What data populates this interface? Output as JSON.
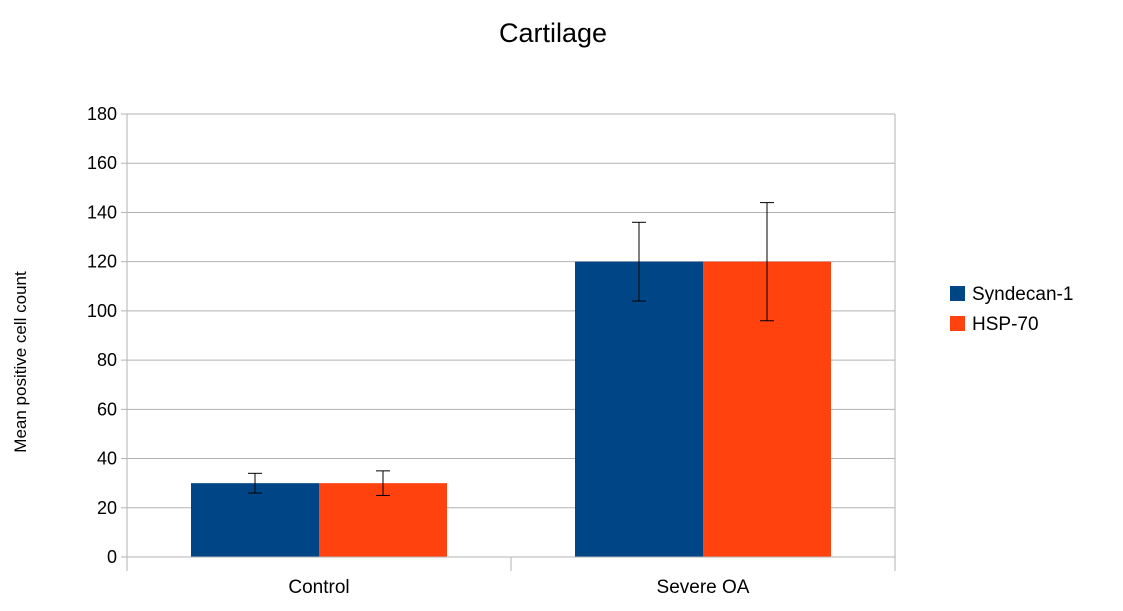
{
  "chart_data": {
    "type": "bar",
    "title": "Cartilage",
    "xlabel": "",
    "ylabel": "Mean positive cell count",
    "categories": [
      "Control",
      "Severe OA"
    ],
    "series": [
      {
        "name": "Syndecan-1",
        "color": "#004586",
        "values": [
          30,
          120
        ],
        "error": [
          4,
          16
        ]
      },
      {
        "name": "HSP-70",
        "color": "#ff420e",
        "values": [
          30,
          120
        ],
        "error": [
          5,
          24
        ]
      }
    ],
    "ylim": [
      0,
      180
    ],
    "yticks": [
      0,
      20,
      40,
      60,
      80,
      100,
      120,
      140,
      160,
      180
    ],
    "grid": true,
    "legend_position": "right"
  }
}
